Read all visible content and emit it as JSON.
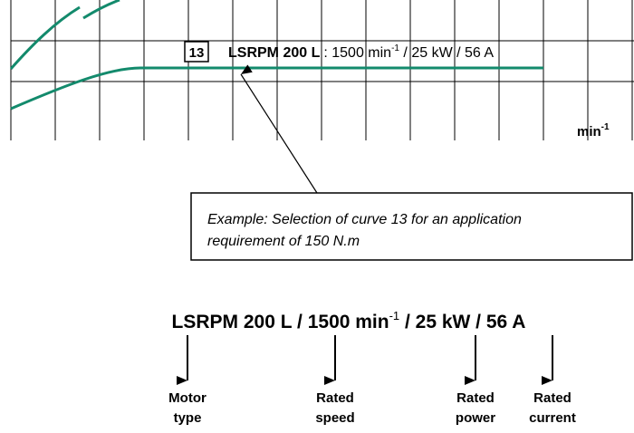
{
  "chart_excerpt": {
    "curve_number": "13",
    "curve_model": "LSRPM 200 L",
    "curve_spec": ": 1500 min",
    "curve_spec_sup": "-1",
    "curve_spec_rest": " / 25 kW / 56 A",
    "axis_unit": "min",
    "axis_unit_sup": "-1"
  },
  "callout": {
    "lines": [
      "Example: Selection of curve 13 for an application",
      "requirement of 150 N.m"
    ]
  },
  "designation": {
    "text": "LSRPM 200 L / 1500 min",
    "sup": "-1",
    "rest": " / 25 kW / 56 A",
    "parts": [
      [
        "Motor",
        "type"
      ],
      [
        "Rated",
        "speed"
      ],
      [
        "Rated",
        "power"
      ],
      [
        "Rated",
        "current"
      ]
    ]
  }
}
